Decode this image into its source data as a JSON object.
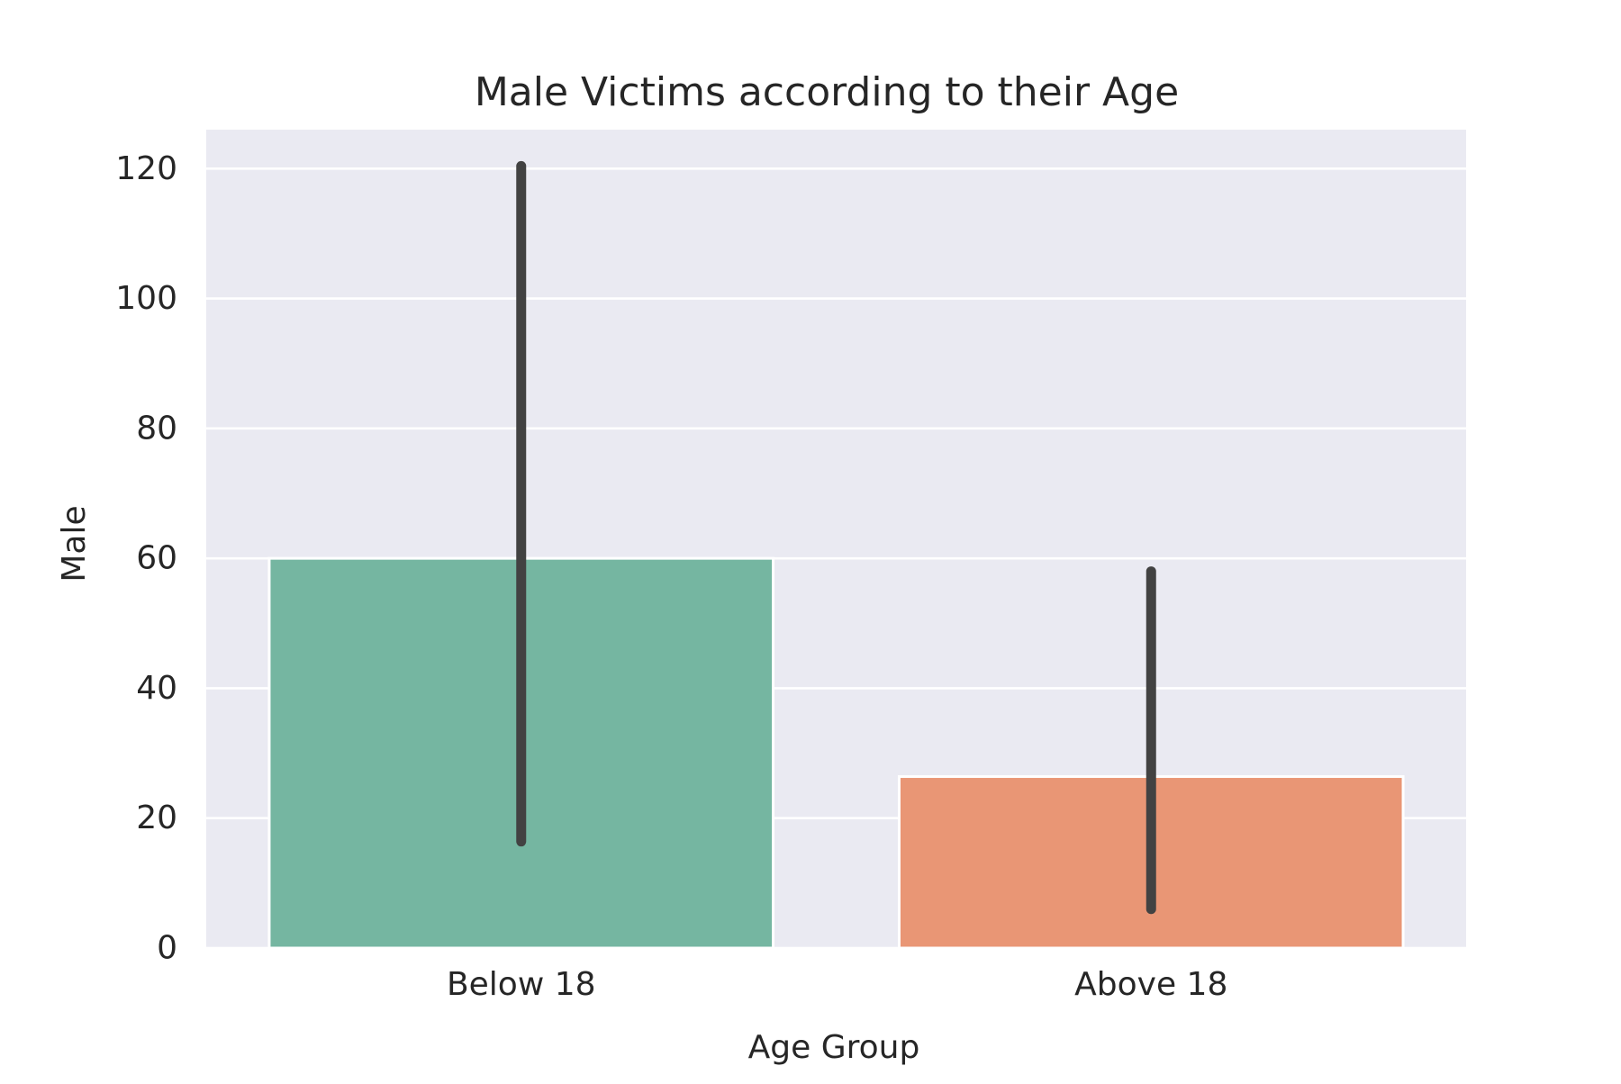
{
  "chart_data": {
    "type": "bar",
    "title": "Male Victims according to their Age",
    "xlabel": "Age Group",
    "ylabel": "Male",
    "categories": [
      "Below 18",
      "Above 18"
    ],
    "values": [
      60,
      26.4
    ],
    "error_bars": [
      {
        "low": 16.4,
        "high": 120.4
      },
      {
        "low": 6.0,
        "high": 58.0
      }
    ],
    "colors": [
      "#75b6a1",
      "#e99675"
    ],
    "error_bar_color": "#424242",
    "ylim": [
      0,
      126
    ],
    "yticks": [
      0,
      20,
      40,
      60,
      80,
      100,
      120
    ],
    "grid": true,
    "legend": "none",
    "background_color": "#eaeaf2",
    "grid_color": "#ffffff"
  }
}
